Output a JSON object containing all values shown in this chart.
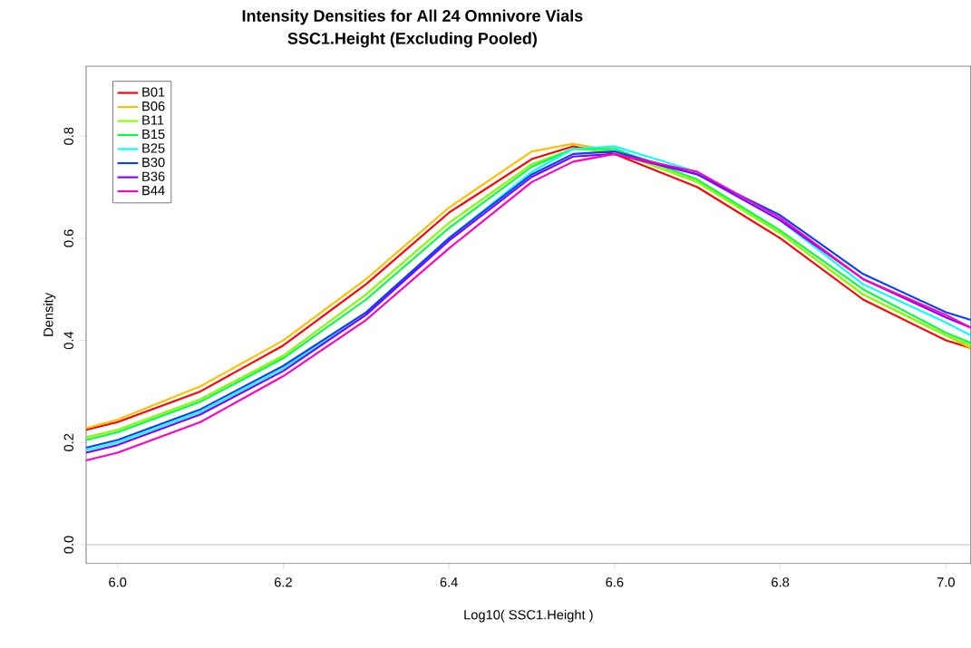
{
  "chart_data": {
    "type": "line",
    "title": "Intensity Densities for All 24 Omnivore  Vials",
    "subtitle": "SSC1.Height (Excluding Pooled)",
    "xlabel": "Log10( SSC1.Height )",
    "ylabel": "Density",
    "x": [
      5.962,
      6.0,
      6.1,
      6.2,
      6.3,
      6.4,
      6.5,
      6.55,
      6.6,
      6.7,
      6.8,
      6.9,
      7.0,
      7.03
    ],
    "series": [
      {
        "name": "B01",
        "color": "#ff0000",
        "values": [
          0.225,
          0.24,
          0.3,
          0.39,
          0.51,
          0.65,
          0.755,
          0.78,
          0.765,
          0.7,
          0.6,
          0.48,
          0.4,
          0.385
        ]
      },
      {
        "name": "B06",
        "color": "#ffbf00",
        "values": [
          0.228,
          0.245,
          0.31,
          0.4,
          0.52,
          0.66,
          0.77,
          0.785,
          0.77,
          0.71,
          0.61,
          0.49,
          0.41,
          0.385
        ]
      },
      {
        "name": "B11",
        "color": "#80ff00",
        "values": [
          0.21,
          0.225,
          0.285,
          0.37,
          0.49,
          0.63,
          0.745,
          0.775,
          0.77,
          0.71,
          0.61,
          0.49,
          0.41,
          0.39
        ]
      },
      {
        "name": "B15",
        "color": "#00ff40",
        "values": [
          0.205,
          0.22,
          0.28,
          0.365,
          0.48,
          0.62,
          0.74,
          0.775,
          0.775,
          0.715,
          0.615,
          0.5,
          0.415,
          0.395
        ]
      },
      {
        "name": "B25",
        "color": "#00ffff",
        "values": [
          0.185,
          0.2,
          0.26,
          0.345,
          0.45,
          0.6,
          0.73,
          0.775,
          0.78,
          0.73,
          0.635,
          0.51,
          0.435,
          0.41
        ]
      },
      {
        "name": "B30",
        "color": "#0040ff",
        "values": [
          0.19,
          0.205,
          0.265,
          0.35,
          0.455,
          0.6,
          0.725,
          0.765,
          0.77,
          0.725,
          0.645,
          0.53,
          0.455,
          0.44
        ]
      },
      {
        "name": "B36",
        "color": "#8000ff",
        "values": [
          0.18,
          0.195,
          0.255,
          0.34,
          0.45,
          0.595,
          0.72,
          0.76,
          0.765,
          0.725,
          0.635,
          0.52,
          0.445,
          0.425
        ]
      },
      {
        "name": "B44",
        "color": "#ff00bf",
        "values": [
          0.165,
          0.18,
          0.24,
          0.33,
          0.44,
          0.58,
          0.71,
          0.75,
          0.765,
          0.73,
          0.64,
          0.52,
          0.45,
          0.425
        ]
      }
    ],
    "xlim": [
      5.962,
      7.03
    ],
    "ylim": [
      -0.037,
      0.937
    ],
    "xticks": [
      {
        "value": 6,
        "label": "6.0"
      },
      6.2,
      6.4,
      6.6,
      6.8,
      {
        "value": 7,
        "label": "7.0"
      }
    ],
    "yticks": [
      {
        "value": 0,
        "label": "0.0"
      },
      0.2,
      0.4,
      0.6,
      0.8
    ],
    "ref_lines": [
      {
        "axis": "y",
        "value": 0,
        "color": "#c0c0c0"
      }
    ],
    "grid": false,
    "legend": "top left",
    "marker": "none",
    "line_style": "solid"
  }
}
